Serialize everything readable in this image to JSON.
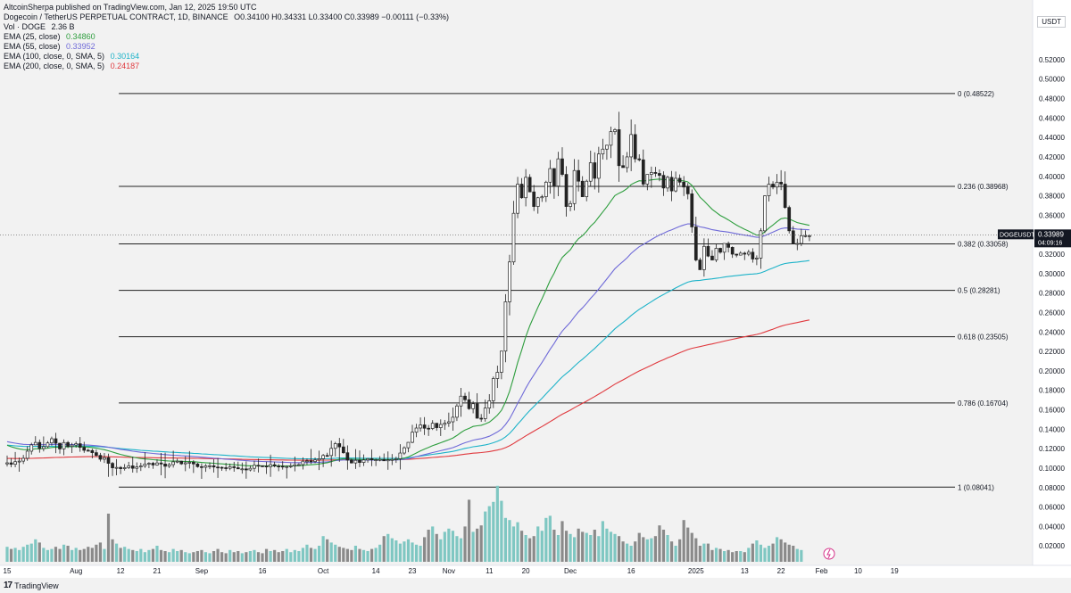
{
  "header": {
    "published_line": "AltcoinSherpa published on TradingView.com, Jan 12, 2025 19:50 UTC",
    "symbol_line": "Dogecoin / TetherUS PERPETUAL CONTRACT, 1D, BINANCE",
    "ohlc": "O0.34100  H0.34331  L0.33400  C0.33989  −0.00111 (−0.33%)",
    "vol_label": "Vol · DOGE",
    "vol_value": "2.36 B",
    "indicators": [
      {
        "label": "EMA (25, close)",
        "value": "0.34860",
        "color": "#2e9e3e"
      },
      {
        "label": "EMA (55, close)",
        "value": "0.33952",
        "color": "#6f6ad8"
      },
      {
        "label": "EMA (100, close, 0, SMA, 5)",
        "value": "0.30164",
        "color": "#1db3c9"
      },
      {
        "label": "EMA (200, close, 0, SMA, 5)",
        "value": "0.24187",
        "color": "#e0393e"
      }
    ]
  },
  "currency": "USDT",
  "footer_brand": "TradingView",
  "chart_data": {
    "type": "candlestick",
    "symbol": "DOGEUSDT.P",
    "last_price": "0.33989",
    "countdown": "04:09:16",
    "ylim": [
      0.0,
      0.53
    ],
    "y_ticks": [
      "0.52000",
      "0.50000",
      "0.48000",
      "0.46000",
      "0.44000",
      "0.42000",
      "0.40000",
      "0.38000",
      "0.36000",
      "0.34000",
      "0.32000",
      "0.30000",
      "0.28000",
      "0.26000",
      "0.24000",
      "0.22000",
      "0.20000",
      "0.18000",
      "0.16000",
      "0.14000",
      "0.12000",
      "0.10000",
      "0.08000",
      "0.06000",
      "0.04000",
      "0.02000"
    ],
    "x_ticks": [
      {
        "label": "15",
        "bar": 0
      },
      {
        "label": "Aug",
        "bar": 17
      },
      {
        "label": "12",
        "bar": 28
      },
      {
        "label": "21",
        "bar": 37
      },
      {
        "label": "Sep",
        "bar": 48
      },
      {
        "label": "16",
        "bar": 63
      },
      {
        "label": "Oct",
        "bar": 78
      },
      {
        "label": "14",
        "bar": 91
      },
      {
        "label": "23",
        "bar": 100
      },
      {
        "label": "Nov",
        "bar": 109
      },
      {
        "label": "11",
        "bar": 119
      },
      {
        "label": "20",
        "bar": 128
      },
      {
        "label": "Dec",
        "bar": 139
      },
      {
        "label": "16",
        "bar": 154
      },
      {
        "label": "2025",
        "bar": 170
      },
      {
        "label": "13",
        "bar": 182
      },
      {
        "label": "22",
        "bar": 191
      },
      {
        "label": "Feb",
        "bar": 201
      },
      {
        "label": "10",
        "bar": 210
      },
      {
        "label": "19",
        "bar": 219
      }
    ],
    "fib_levels": [
      {
        "label": "0 (0.48522)",
        "value": 0.48522
      },
      {
        "label": "0.236 (0.38968)",
        "value": 0.38968
      },
      {
        "label": "0.382 (0.33058)",
        "value": 0.33058
      },
      {
        "label": "0.5 (0.28281)",
        "value": 0.28281
      },
      {
        "label": "0.618 (0.23505)",
        "value": 0.23505
      },
      {
        "label": "0.786 (0.16704)",
        "value": 0.16704
      },
      {
        "label": "1 (0.08041)",
        "value": 0.08041
      }
    ],
    "fib_start_bar": 28,
    "closes": [
      0.1054,
      0.1039,
      0.1066,
      0.1072,
      0.1101,
      0.1174,
      0.1239,
      0.1264,
      0.1201,
      0.1221,
      0.1259,
      0.1302,
      0.1256,
      0.1197,
      0.1263,
      0.1223,
      0.1237,
      0.1251,
      0.1213,
      0.1183,
      0.1181,
      0.1159,
      0.1131,
      0.1091,
      0.1108,
      0.1049,
      0.1003,
      0.1007,
      0.0994,
      0.1005,
      0.1023,
      0.0998,
      0.1012,
      0.1022,
      0.1042,
      0.105,
      0.1032,
      0.1053,
      0.1042,
      0.1019,
      0.1036,
      0.1064,
      0.1071,
      0.1044,
      0.1055,
      0.106,
      0.1043,
      0.1015,
      0.1008,
      0.1024,
      0.1024,
      0.1011,
      0.1008,
      0.1004,
      0.0998,
      0.1014,
      0.1004,
      0.0992,
      0.0992,
      0.0981,
      0.0998,
      0.1029,
      0.1024,
      0.1021,
      0.1015,
      0.1035,
      0.1021,
      0.102,
      0.1013,
      0.1016,
      0.1023,
      0.1035,
      0.1036,
      0.1071,
      0.1075,
      0.1067,
      0.1084,
      0.1097,
      0.113,
      0.1129,
      0.1203,
      0.1252,
      0.1218,
      0.1158,
      0.1082,
      0.1053,
      0.108,
      0.1058,
      0.1084,
      0.1097,
      0.1085,
      0.1086,
      0.1089,
      0.1075,
      0.1085,
      0.1089,
      0.1096,
      0.1155,
      0.1209,
      0.1265,
      0.1369,
      0.1412,
      0.1444,
      0.141,
      0.1407,
      0.1461,
      0.1416,
      0.1449,
      0.1462,
      0.1476,
      0.1523,
      0.1639,
      0.174,
      0.1703,
      0.1611,
      0.1662,
      0.1513,
      0.1508,
      0.1617,
      0.1693,
      0.1921,
      0.1985,
      0.2203,
      0.271,
      0.312,
      0.362,
      0.392,
      0.378,
      0.399,
      0.384,
      0.369,
      0.378,
      0.379,
      0.394,
      0.408,
      0.39,
      0.418,
      0.402,
      0.369,
      0.372,
      0.406,
      0.395,
      0.379,
      0.395,
      0.414,
      0.398,
      0.423,
      0.428,
      0.432,
      0.446,
      0.448,
      0.411,
      0.409,
      0.42,
      0.443,
      0.418,
      0.417,
      0.392,
      0.402,
      0.404,
      0.403,
      0.401,
      0.388,
      0.399,
      0.385,
      0.398,
      0.394,
      0.389,
      0.382,
      0.348,
      0.314,
      0.304,
      0.328,
      0.318,
      0.314,
      0.326,
      0.322,
      0.331,
      0.327,
      0.32,
      0.319,
      0.321,
      0.32,
      0.322,
      0.315,
      0.316,
      0.344,
      0.38,
      0.392,
      0.389,
      0.394,
      0.392,
      0.368,
      0.344,
      0.331,
      0.331,
      0.339,
      0.339,
      0.339
    ],
    "volume_max": 0.066,
    "volumes": [
      0.014,
      0.012,
      0.013,
      0.011,
      0.014,
      0.016,
      0.017,
      0.021,
      0.018,
      0.013,
      0.011,
      0.012,
      0.014,
      0.012,
      0.016,
      0.015,
      0.011,
      0.013,
      0.011,
      0.012,
      0.014,
      0.013,
      0.016,
      0.018,
      0.012,
      0.045,
      0.021,
      0.017,
      0.013,
      0.014,
      0.012,
      0.011,
      0.01,
      0.012,
      0.009,
      0.011,
      0.012,
      0.015,
      0.011,
      0.01,
      0.009,
      0.012,
      0.01,
      0.011,
      0.009,
      0.008,
      0.009,
      0.01,
      0.011,
      0.009,
      0.008,
      0.01,
      0.012,
      0.009,
      0.008,
      0.011,
      0.009,
      0.01,
      0.008,
      0.009,
      0.01,
      0.011,
      0.009,
      0.008,
      0.012,
      0.01,
      0.011,
      0.009,
      0.01,
      0.012,
      0.009,
      0.011,
      0.01,
      0.013,
      0.016,
      0.013,
      0.012,
      0.015,
      0.024,
      0.021,
      0.018,
      0.016,
      0.014,
      0.013,
      0.012,
      0.011,
      0.015,
      0.012,
      0.011,
      0.01,
      0.012,
      0.013,
      0.016,
      0.024,
      0.026,
      0.022,
      0.02,
      0.017,
      0.019,
      0.021,
      0.018,
      0.016,
      0.015,
      0.023,
      0.03,
      0.033,
      0.026,
      0.021,
      0.028,
      0.031,
      0.029,
      0.024,
      0.022,
      0.033,
      0.058,
      0.028,
      0.031,
      0.034,
      0.047,
      0.052,
      0.056,
      0.071,
      0.057,
      0.041,
      0.039,
      0.033,
      0.037,
      0.029,
      0.025,
      0.022,
      0.024,
      0.033,
      0.029,
      0.041,
      0.043,
      0.03,
      0.025,
      0.038,
      0.029,
      0.026,
      0.023,
      0.031,
      0.028,
      0.027,
      0.025,
      0.03,
      0.024,
      0.038,
      0.031,
      0.028,
      0.026,
      0.024,
      0.019,
      0.017,
      0.015,
      0.019,
      0.027,
      0.023,
      0.021,
      0.022,
      0.024,
      0.034,
      0.03,
      0.025,
      0.019,
      0.015,
      0.021,
      0.039,
      0.032,
      0.027,
      0.022,
      0.015,
      0.017,
      0.017,
      0.011,
      0.013,
      0.012,
      0.01,
      0.011,
      0.009,
      0.01,
      0.01,
      0.009,
      0.013,
      0.017,
      0.02,
      0.016,
      0.013,
      0.015,
      0.017,
      0.023,
      0.021,
      0.018,
      0.016,
      0.015,
      0.012,
      0.011
    ]
  }
}
